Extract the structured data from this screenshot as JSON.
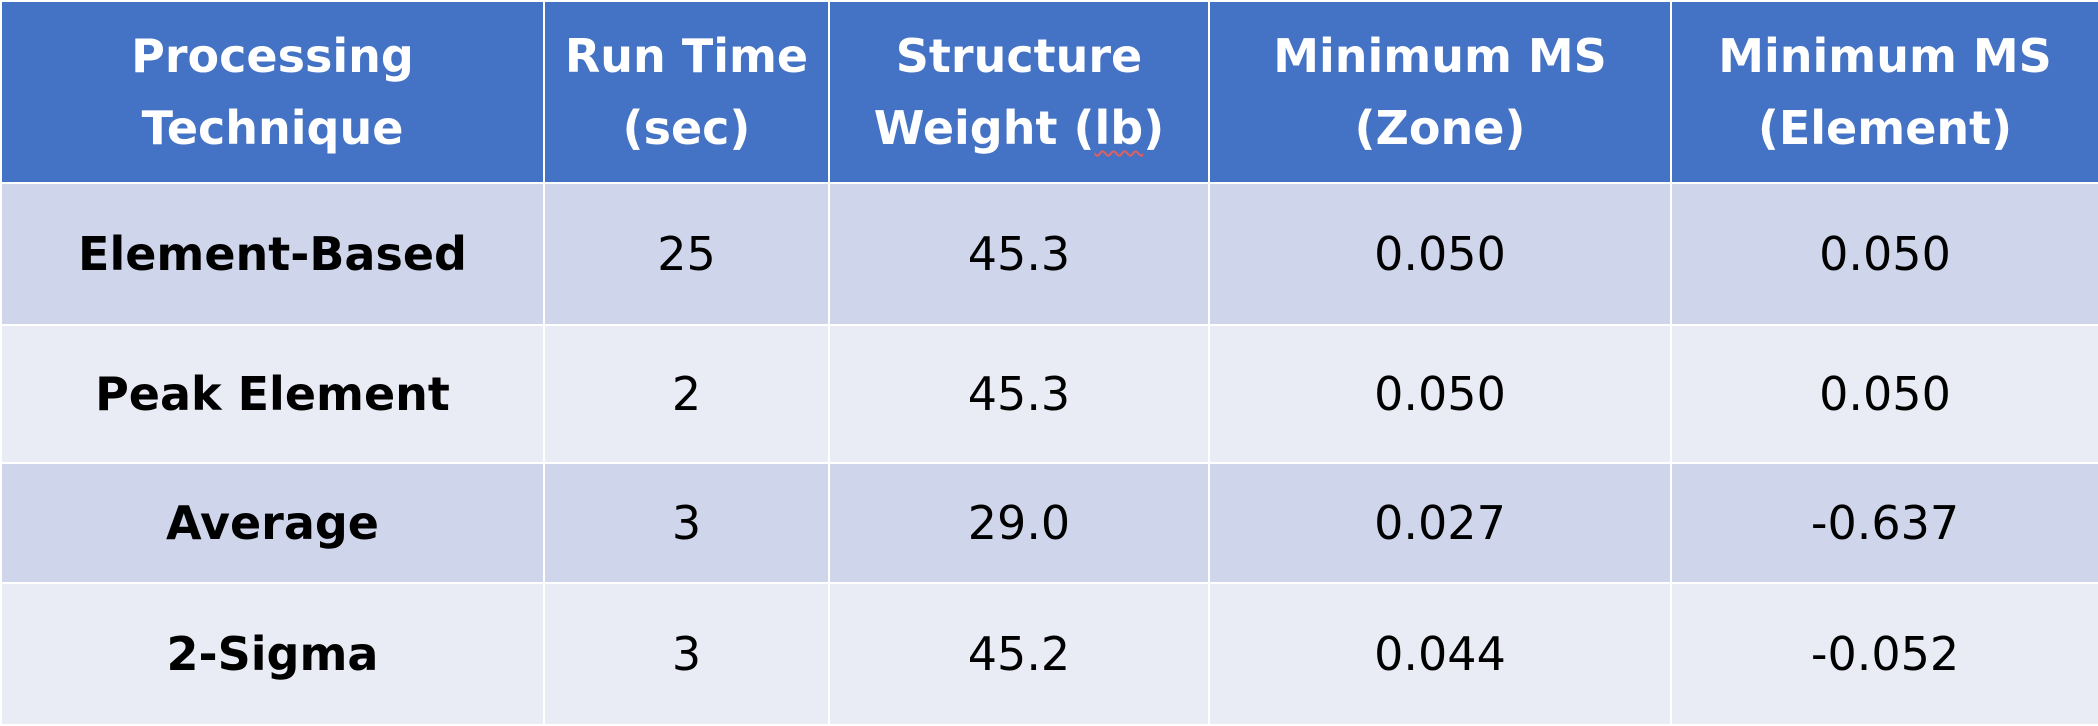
{
  "colors": {
    "header_bg": "#4472c4",
    "header_text": "#ffffff",
    "row_dark": "#cfd5ea",
    "row_light": "#e9ebf5",
    "positive_margin": "#00b050",
    "negative_margin": "#c00000"
  },
  "table": {
    "headers": [
      {
        "line1": "Processing",
        "line2": "Technique"
      },
      {
        "line1": "Run Time",
        "line2": "(sec)"
      },
      {
        "line1": "Structure",
        "line2_pre": "Weight (",
        "line2_mid": "lb",
        "line2_post": ")"
      },
      {
        "line1": "Minimum MS",
        "line2": "(Zone)"
      },
      {
        "line1": "Minimum MS",
        "line2": "(Element)"
      }
    ],
    "rows": [
      {
        "method": "Element-Based",
        "run_time": "25",
        "weight": "45.3",
        "ms_zone": "0.050",
        "ms_element": "0.050"
      },
      {
        "method": "Peak Element",
        "run_time": "2",
        "weight": "45.3",
        "ms_zone": "0.050",
        "ms_element": "0.050"
      },
      {
        "method": "Average",
        "run_time": "3",
        "weight": "29.0",
        "ms_zone": "0.027",
        "ms_element": "-0.637"
      },
      {
        "method": "2-Sigma",
        "run_time": "3",
        "weight": "45.2",
        "ms_zone": "0.044",
        "ms_element": "-0.052"
      }
    ]
  }
}
